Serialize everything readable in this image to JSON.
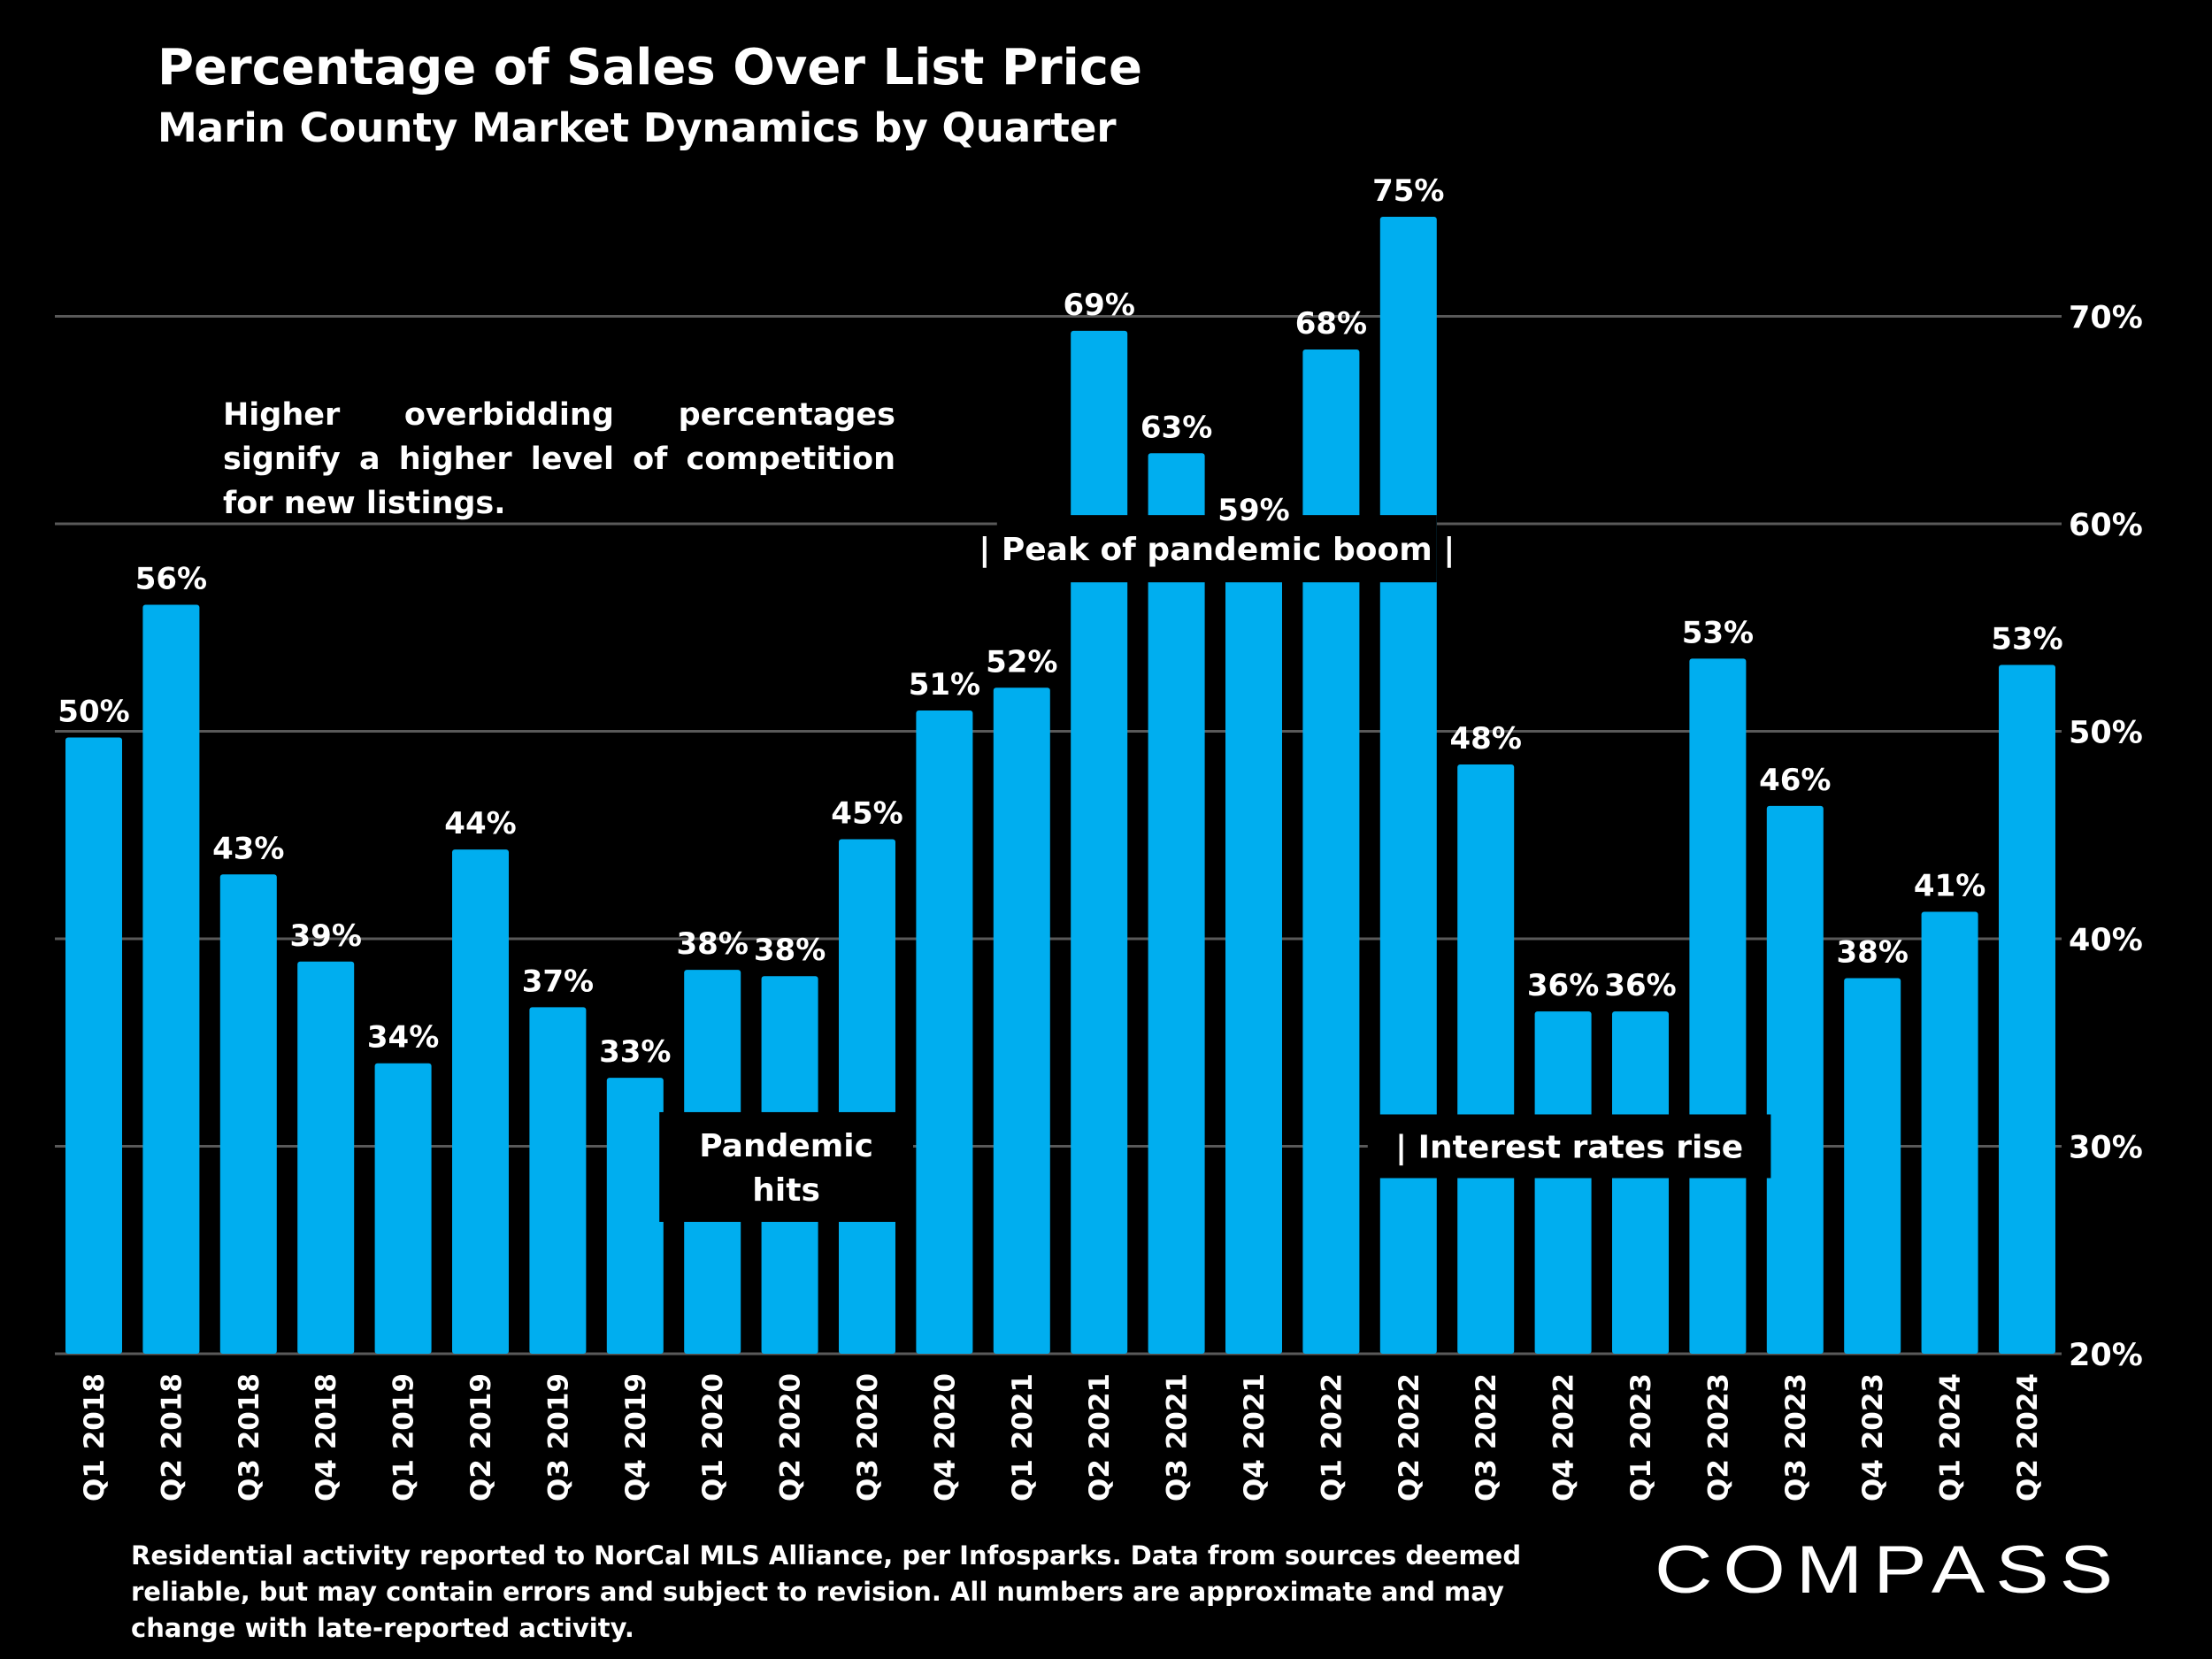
{
  "header": {
    "title": "Percentage of Sales Over List Price",
    "subtitle": "Marin County Market Dynamics by Quarter"
  },
  "note": "Higher overbidding percentages signify a higher level of competition for new listings.",
  "footer": {
    "source": "Residential activity reported to NorCal MLS Alliance, per Infosparks. Data from sources deemed reliable, but may contain errors and subject to revision. All numbers are approximate and may change with late-reported activity.",
    "logo": "COMPASS"
  },
  "colors": {
    "bar": "#00AEEF",
    "background": "#000000",
    "grid": "#595959",
    "text": "#FFFFFF"
  },
  "chart_data": {
    "type": "bar",
    "title": "Percentage of Sales Over List Price",
    "subtitle": "Marin County Market Dynamics by Quarter",
    "categories": [
      "Q1 2018",
      "Q2 2018",
      "Q3 2018",
      "Q4 2018",
      "Q1 2019",
      "Q2 2019",
      "Q3 2019",
      "Q4 2019",
      "Q1 2020",
      "Q2 2020",
      "Q3 2020",
      "Q4 2020",
      "Q1 2021",
      "Q2 2021",
      "Q3 2021",
      "Q4 2021",
      "Q1 2022",
      "Q2 2022",
      "Q3 2022",
      "Q4 2022",
      "Q1 2023",
      "Q2 2023",
      "Q3 2023",
      "Q4 2023",
      "Q1 2024",
      "Q2 2024"
    ],
    "values": [
      49.7,
      56.1,
      43.1,
      38.9,
      34.0,
      44.3,
      36.7,
      33.3,
      38.5,
      38.2,
      44.8,
      51.0,
      52.1,
      69.3,
      63.4,
      59.4,
      68.4,
      74.8,
      48.4,
      36.5,
      36.5,
      53.5,
      46.4,
      38.1,
      41.3,
      53.2
    ],
    "data_labels": [
      "50%",
      "56%",
      "43%",
      "39%",
      "34%",
      "44%",
      "37%",
      "33%",
      "38%",
      "38%",
      "45%",
      "51%",
      "52%",
      "69%",
      "63%",
      "59%",
      "68%",
      "75%",
      "48%",
      "36%",
      "36%",
      "53%",
      "46%",
      "38%",
      "41%",
      "53%"
    ],
    "y_axis": {
      "position": "right",
      "ylim": [
        20,
        75
      ],
      "ticks": [
        20,
        30,
        40,
        50,
        60,
        70
      ],
      "tick_labels": [
        "20%",
        "30%",
        "40%",
        "50%",
        "60%",
        "70%"
      ]
    },
    "grid": true,
    "annotations": [
      {
        "text": "| Peak of pandemic boom |",
        "from": "Q1 2021",
        "to": "Q2 2022",
        "y": 58.8
      },
      {
        "text": "Pandemic\nhits",
        "from": "Q1 2020",
        "to": "Q3 2020",
        "y": 29.0
      },
      {
        "text": "| Interest rates rise",
        "from": "Q2 2022",
        "to": "Q2 2023",
        "y": 30.0
      }
    ]
  }
}
